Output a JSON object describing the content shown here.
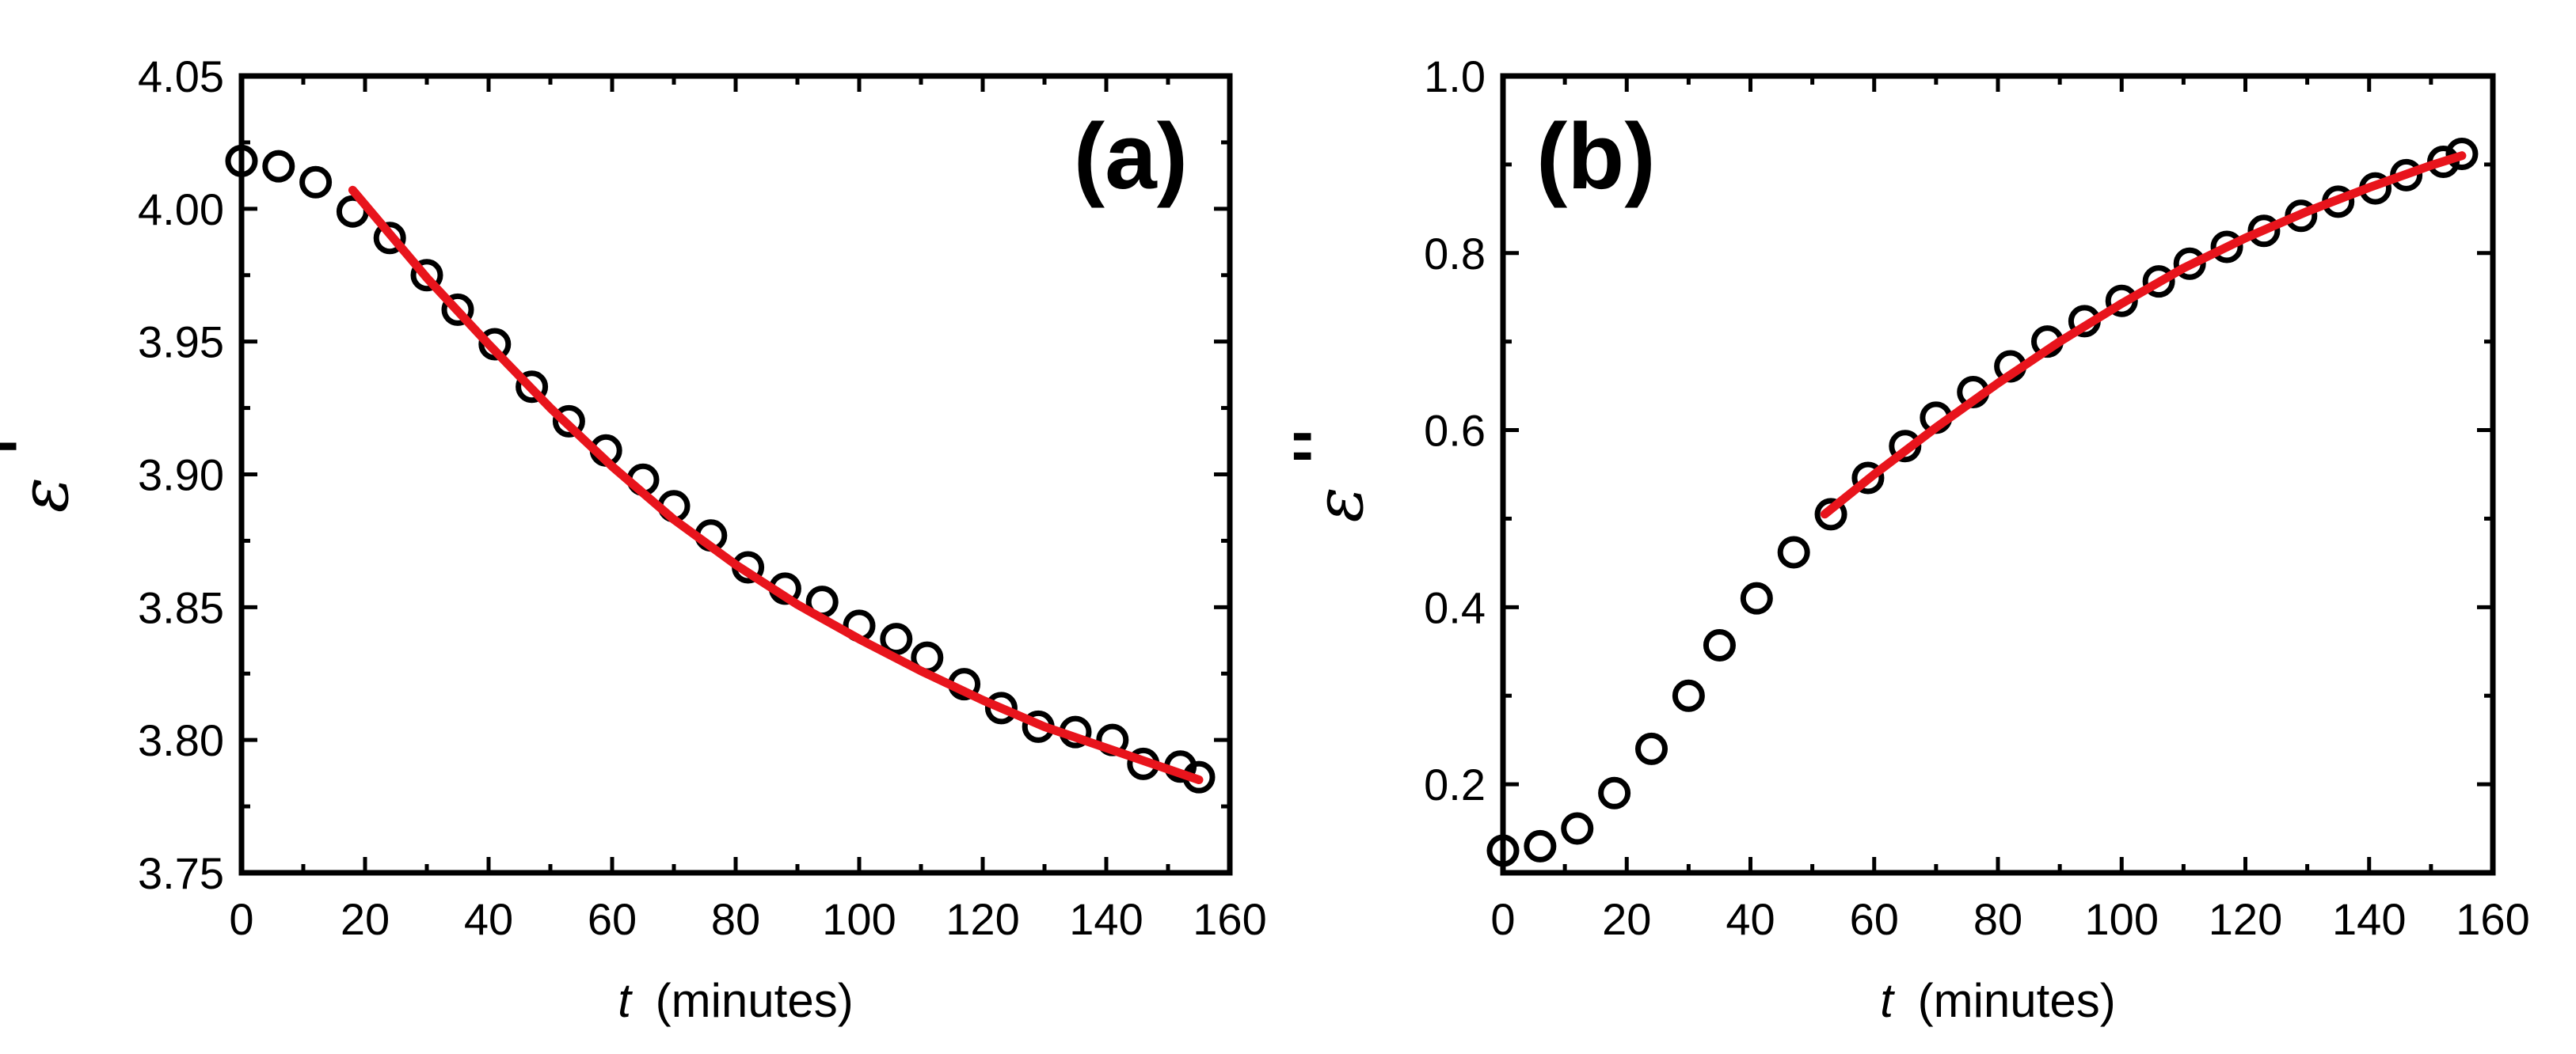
{
  "chart_data": [
    {
      "type": "scatter",
      "panel_label": "(a)",
      "xlabel_var": "t",
      "xlabel_unit": "(minutes)",
      "ylabel_symbol": "ε",
      "ylabel_prime": "'",
      "xlim": [
        0,
        160
      ],
      "ylim": [
        3.75,
        4.05
      ],
      "xticks": [
        0,
        20,
        40,
        60,
        80,
        100,
        120,
        140,
        160
      ],
      "yticks": [
        3.75,
        3.8,
        3.85,
        3.9,
        3.95,
        4.0,
        4.05
      ],
      "xtick_labels": [
        "0",
        "20",
        "40",
        "60",
        "80",
        "100",
        "120",
        "140",
        "160"
      ],
      "ytick_labels": [
        "3.75",
        "3.80",
        "3.85",
        "3.90",
        "3.95",
        "4.00",
        "4.05"
      ],
      "colors": {
        "marker": "#000000",
        "fit": "#e8141c"
      },
      "series": [
        {
          "name": "data",
          "x": [
            0,
            6,
            12,
            18,
            24,
            30,
            35,
            41,
            47,
            53,
            59,
            65,
            70,
            76,
            82,
            88,
            94,
            100,
            106,
            111,
            117,
            123,
            129,
            135,
            141,
            146,
            152,
            155
          ],
          "y": [
            4.018,
            4.016,
            4.01,
            3.999,
            3.989,
            3.975,
            3.962,
            3.949,
            3.933,
            3.92,
            3.909,
            3.898,
            3.888,
            3.877,
            3.865,
            3.857,
            3.852,
            3.843,
            3.838,
            3.831,
            3.821,
            3.812,
            3.805,
            3.803,
            3.8,
            3.791,
            3.79,
            3.786
          ]
        },
        {
          "name": "fit",
          "x": [
            18,
            30,
            40,
            50,
            60,
            70,
            80,
            90,
            100,
            110,
            120,
            130,
            140,
            150,
            155
          ],
          "y": [
            4.007,
            3.974,
            3.949,
            3.925,
            3.903,
            3.883,
            3.866,
            3.851,
            3.838,
            3.826,
            3.815,
            3.805,
            3.797,
            3.789,
            3.785
          ]
        }
      ]
    },
    {
      "type": "scatter",
      "panel_label": "(b)",
      "xlabel_var": "t",
      "xlabel_unit": "(minutes)",
      "ylabel_symbol": "ε",
      "ylabel_prime": "''",
      "xlim": [
        0,
        160
      ],
      "ylim": [
        0.1,
        1.0
      ],
      "xticks": [
        0,
        20,
        40,
        60,
        80,
        100,
        120,
        140,
        160
      ],
      "yticks": [
        0.2,
        0.4,
        0.6,
        0.8,
        1.0
      ],
      "xtick_labels": [
        "0",
        "20",
        "40",
        "60",
        "80",
        "100",
        "120",
        "140",
        "160"
      ],
      "ytick_labels": [
        "0.2",
        "0.4",
        "0.6",
        "0.8",
        "1.0"
      ],
      "colors": {
        "marker": "#000000",
        "fit": "#e8141c"
      },
      "series": [
        {
          "name": "data",
          "x": [
            0,
            6,
            12,
            18,
            24,
            30,
            35,
            41,
            47,
            53,
            59,
            65,
            70,
            76,
            82,
            88,
            94,
            100,
            106,
            111,
            117,
            123,
            129,
            135,
            141,
            146,
            152,
            155
          ],
          "y": [
            0.125,
            0.13,
            0.15,
            0.19,
            0.24,
            0.3,
            0.357,
            0.41,
            0.462,
            0.505,
            0.546,
            0.582,
            0.614,
            0.643,
            0.672,
            0.7,
            0.723,
            0.746,
            0.768,
            0.788,
            0.807,
            0.825,
            0.842,
            0.858,
            0.873,
            0.888,
            0.903,
            0.912
          ]
        },
        {
          "name": "fit",
          "x": [
            52,
            60,
            70,
            80,
            90,
            100,
            110,
            120,
            130,
            140,
            150,
            155
          ],
          "y": [
            0.505,
            0.55,
            0.603,
            0.653,
            0.7,
            0.743,
            0.783,
            0.817,
            0.847,
            0.874,
            0.899,
            0.91
          ]
        }
      ]
    }
  ]
}
